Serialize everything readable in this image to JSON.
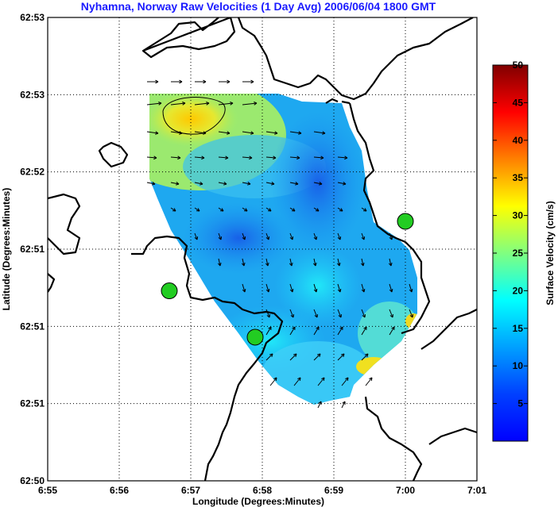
{
  "chart_data": {
    "type": "map",
    "title": "Nyhamna, Norway Raw Velocities (1 Day Avg) 2006/06/04 1800 GMT",
    "xlabel": "Longitude (Degrees:Minutes)",
    "ylabel": "Latitude (Degrees:Minutes)",
    "x_ticks": [
      "6:55",
      "6:56",
      "6:57",
      "6:58",
      "6:59",
      "7:00",
      "7:01"
    ],
    "y_ticks": [
      "62:53",
      "62:53",
      "62:52",
      "62:51",
      "62:51",
      "62:51",
      "62:50"
    ],
    "grid": true,
    "colorbar": {
      "label": "Surface Velocity (cm/s)",
      "min": 0,
      "max": 50,
      "ticks": [
        5,
        10,
        15,
        20,
        25,
        30,
        35,
        40,
        45,
        50
      ],
      "colormap": "jet"
    },
    "stations": [
      {
        "lon_min": 56.7,
        "lat_frac": 0.41
      },
      {
        "lon_min": 57.9,
        "lat_frac": 0.31
      },
      {
        "lon_min": 60.0,
        "lat_frac": 0.56
      }
    ],
    "station_color": "#22cc22",
    "coast_color": "#000000",
    "vector_color": "#000000"
  }
}
